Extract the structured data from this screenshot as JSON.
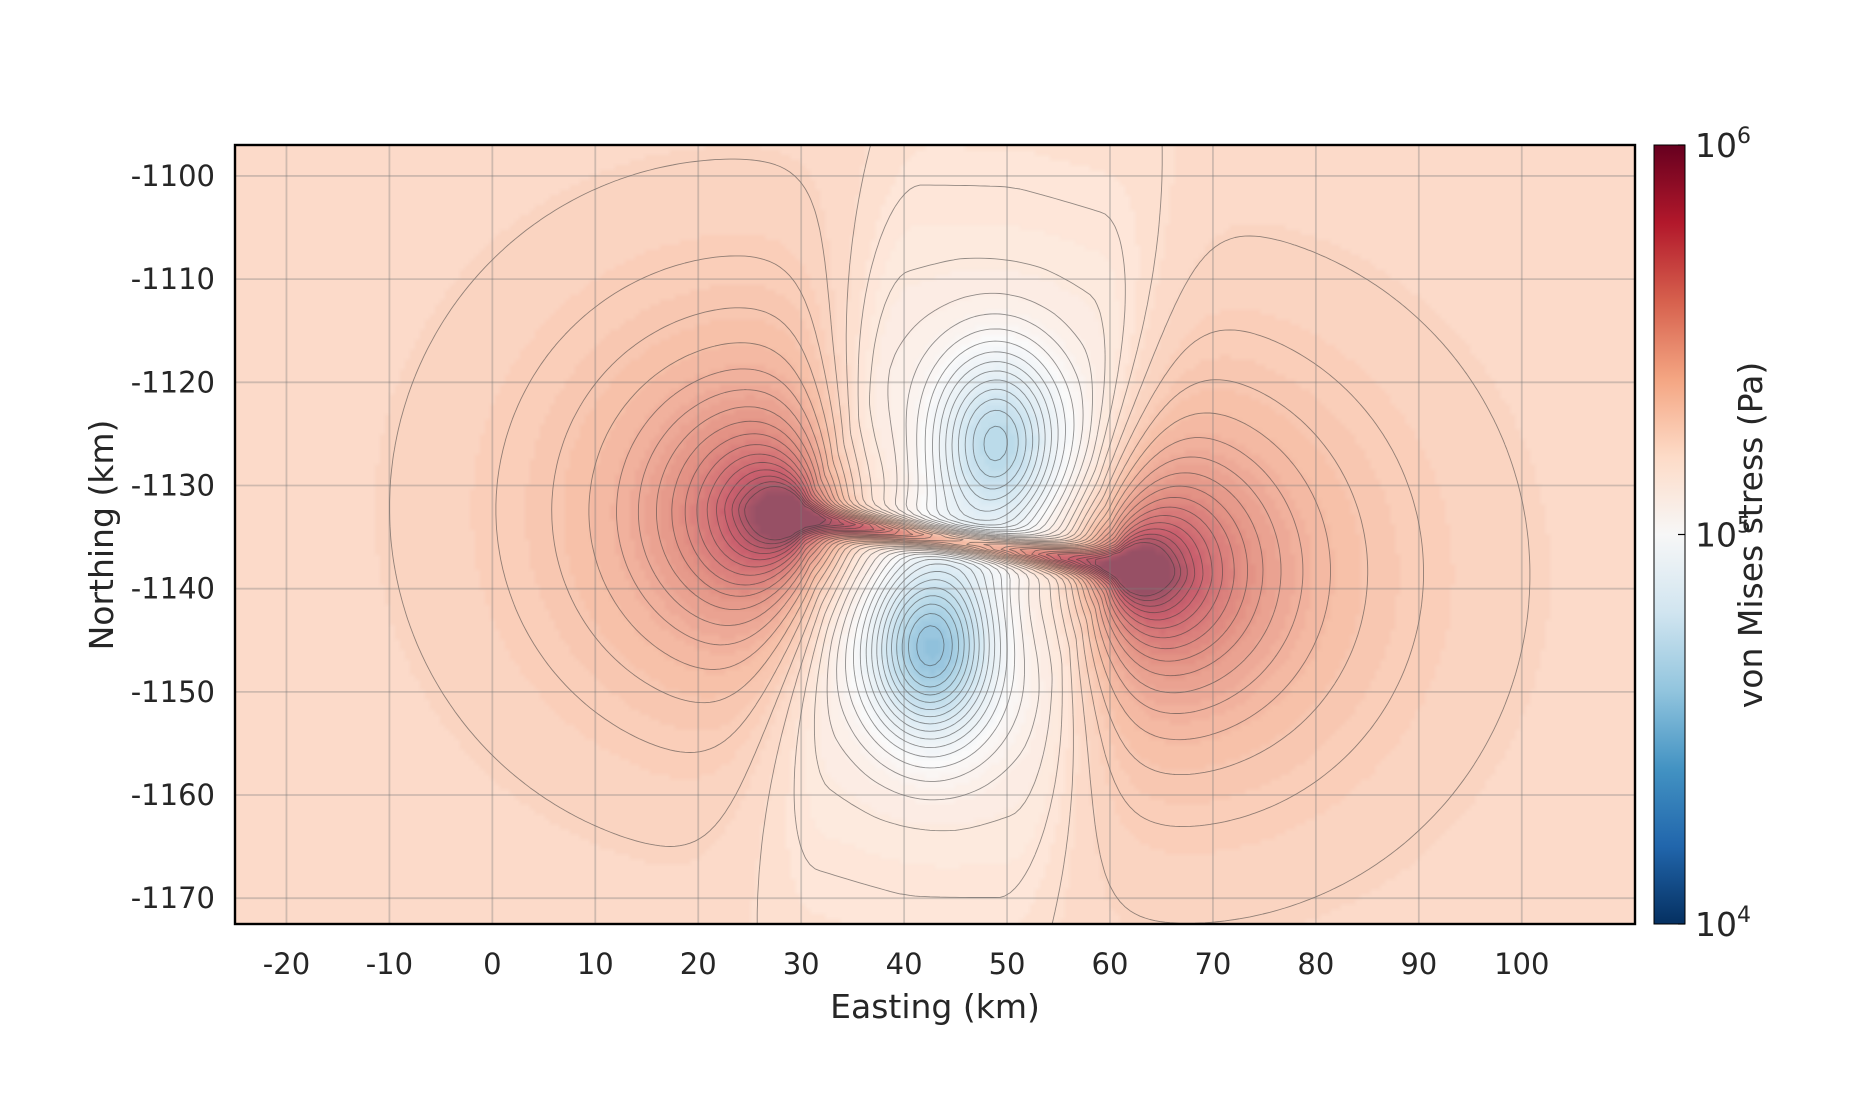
{
  "chart_data": {
    "type": "heatmap",
    "title": "",
    "xlabel": "Easting (km)",
    "ylabel": "Northing (km)",
    "xlim": [
      -25,
      111
    ],
    "ylim": [
      -1172.5,
      -1097
    ],
    "x_ticks": [
      "-20",
      "-10",
      "0",
      "10",
      "20",
      "30",
      "40",
      "50",
      "60",
      "70",
      "80",
      "90",
      "100"
    ],
    "x_tick_values": [
      -20,
      -10,
      0,
      10,
      20,
      30,
      40,
      50,
      60,
      70,
      80,
      90,
      100
    ],
    "y_ticks": [
      "-1100",
      "-1110",
      "-1120",
      "-1130",
      "-1140",
      "-1150",
      "-1160",
      "-1170"
    ],
    "y_tick_values": [
      -1100,
      -1110,
      -1120,
      -1130,
      -1140,
      -1150,
      -1160,
      -1170
    ],
    "grid": true,
    "colorbar": {
      "label": "von Mises stress (Pa)",
      "scale": "log",
      "range": [
        10000,
        1000000
      ],
      "colormap": "RdBu_r",
      "ticks": [
        {
          "value": 1000000,
          "base": "10",
          "exp": "6"
        },
        {
          "value": 100000,
          "base": "10",
          "exp": "5"
        },
        {
          "value": 10000,
          "base": "10",
          "exp": "4"
        }
      ],
      "colors": [
        "#053061",
        "#2166ac",
        "#4393c3",
        "#92c5de",
        "#d1e5f0",
        "#f7f7f7",
        "#fddbc7",
        "#f4a582",
        "#d6604d",
        "#b2182b",
        "#67001f"
      ]
    },
    "field_features": [
      {
        "kind": "dislocation_tip",
        "x": 29.5,
        "y": -1133,
        "peak_stress": 900000
      },
      {
        "kind": "dislocation_tip",
        "x": 61.3,
        "y": -1137.8,
        "peak_stress": 900000
      },
      {
        "kind": "stress_low",
        "x": 42.5,
        "y": -1145.5,
        "min_stress": 22000
      },
      {
        "kind": "stress_low",
        "x": 49,
        "y": -1126,
        "min_stress": 35000
      }
    ],
    "background_stress": 180000
  }
}
